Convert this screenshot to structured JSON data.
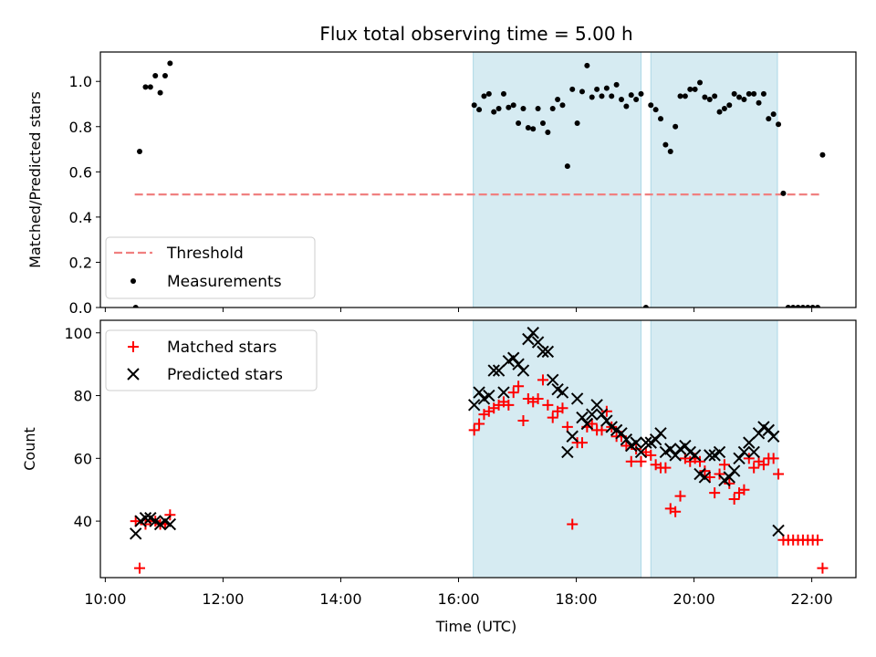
{
  "figure": {
    "title": "Flux total observing time = 5.00 h",
    "xlabel": "Time (UTC)",
    "xticks": [
      "10:00",
      "12:00",
      "14:00",
      "16:00",
      "18:00",
      "20:00",
      "22:00"
    ]
  },
  "colors": {
    "shade": "#add8e6",
    "threshold": "#f08080",
    "matched": "#ff0000",
    "predicted": "#000000",
    "measurements": "#000000"
  },
  "chart_data": [
    {
      "type": "scatter",
      "ylabel": "Matched/Predicted stars",
      "xlim": [
        "09:55",
        "22:45"
      ],
      "ylim": [
        0,
        1.13
      ],
      "yticks": [
        "0.0",
        "0.2",
        "0.4",
        "0.6",
        "0.8",
        "1.0"
      ],
      "legend_position": "lower-left",
      "shaded_intervals": [
        [
          "16:15",
          "19:06"
        ],
        [
          "19:16",
          "21:25"
        ]
      ],
      "threshold": {
        "name": "Threshold",
        "y": 0.5,
        "x": [
          "10:30",
          "22:10"
        ]
      },
      "series": [
        {
          "name": "Measurements",
          "points": [
            [
              "10:31",
              0.0
            ],
            [
              "10:35",
              0.69
            ],
            [
              "10:41",
              0.975
            ],
            [
              "10:46",
              0.975
            ],
            [
              "10:51",
              1.025
            ],
            [
              "10:56",
              0.95
            ],
            [
              "11:01",
              1.025
            ],
            [
              "11:06",
              1.08
            ],
            [
              "16:16",
              0.895
            ],
            [
              "16:21",
              0.875
            ],
            [
              "16:26",
              0.935
            ],
            [
              "16:31",
              0.945
            ],
            [
              "16:36",
              0.865
            ],
            [
              "16:41",
              0.88
            ],
            [
              "16:46",
              0.945
            ],
            [
              "16:51",
              0.885
            ],
            [
              "16:56",
              0.895
            ],
            [
              "17:01",
              0.815
            ],
            [
              "17:06",
              0.88
            ],
            [
              "17:11",
              0.795
            ],
            [
              "17:16",
              0.79
            ],
            [
              "17:21",
              0.88
            ],
            [
              "17:26",
              0.815
            ],
            [
              "17:31",
              0.775
            ],
            [
              "17:36",
              0.88
            ],
            [
              "17:41",
              0.92
            ],
            [
              "17:46",
              0.895
            ],
            [
              "17:51",
              0.625
            ],
            [
              "17:56",
              0.965
            ],
            [
              "18:01",
              0.815
            ],
            [
              "18:06",
              0.955
            ],
            [
              "18:11",
              1.07
            ],
            [
              "18:16",
              0.93
            ],
            [
              "18:21",
              0.965
            ],
            [
              "18:26",
              0.935
            ],
            [
              "18:31",
              0.97
            ],
            [
              "18:36",
              0.935
            ],
            [
              "18:41",
              0.985
            ],
            [
              "18:46",
              0.92
            ],
            [
              "18:51",
              0.89
            ],
            [
              "18:56",
              0.94
            ],
            [
              "19:01",
              0.92
            ],
            [
              "19:06",
              0.945
            ],
            [
              "19:11",
              0.0
            ],
            [
              "19:16",
              0.895
            ],
            [
              "19:21",
              0.875
            ],
            [
              "19:26",
              0.835
            ],
            [
              "19:31",
              0.72
            ],
            [
              "19:36",
              0.69
            ],
            [
              "19:41",
              0.8
            ],
            [
              "19:46",
              0.935
            ],
            [
              "19:51",
              0.935
            ],
            [
              "19:56",
              0.965
            ],
            [
              "20:01",
              0.965
            ],
            [
              "20:06",
              0.995
            ],
            [
              "20:11",
              0.93
            ],
            [
              "20:16",
              0.92
            ],
            [
              "20:21",
              0.935
            ],
            [
              "20:26",
              0.865
            ],
            [
              "20:31",
              0.88
            ],
            [
              "20:36",
              0.895
            ],
            [
              "20:41",
              0.945
            ],
            [
              "20:46",
              0.93
            ],
            [
              "20:51",
              0.92
            ],
            [
              "20:56",
              0.945
            ],
            [
              "21:01",
              0.945
            ],
            [
              "21:06",
              0.905
            ],
            [
              "21:11",
              0.945
            ],
            [
              "21:16",
              0.835
            ],
            [
              "21:21",
              0.855
            ],
            [
              "21:26",
              0.81
            ],
            [
              "21:31",
              0.505
            ],
            [
              "21:36",
              0.0
            ],
            [
              "21:41",
              0.0
            ],
            [
              "21:46",
              0.0
            ],
            [
              "21:51",
              0.0
            ],
            [
              "21:56",
              0.0
            ],
            [
              "22:01",
              0.0
            ],
            [
              "22:06",
              0.0
            ],
            [
              "22:11",
              0.675
            ]
          ]
        }
      ]
    },
    {
      "type": "scatter",
      "ylabel": "Count",
      "xlim": [
        "09:55",
        "22:45"
      ],
      "ylim": [
        22,
        104
      ],
      "yticks": [
        "40",
        "60",
        "80",
        "100"
      ],
      "legend_position": "upper-left",
      "shaded_intervals": [
        [
          "16:15",
          "19:06"
        ],
        [
          "19:16",
          "21:25"
        ]
      ],
      "series": [
        {
          "name": "Matched stars",
          "marker": "plus",
          "points": [
            [
              "10:31",
              40
            ],
            [
              "10:35",
              25
            ],
            [
              "10:41",
              39
            ],
            [
              "10:46",
              40
            ],
            [
              "10:51",
              40
            ],
            [
              "10:56",
              39
            ],
            [
              "11:01",
              39
            ],
            [
              "11:06",
              42
            ],
            [
              "16:16",
              69
            ],
            [
              "16:21",
              71
            ],
            [
              "16:26",
              74
            ],
            [
              "16:31",
              75
            ],
            [
              "16:36",
              76
            ],
            [
              "16:41",
              77
            ],
            [
              "16:46",
              78
            ],
            [
              "16:51",
              77
            ],
            [
              "16:56",
              81
            ],
            [
              "17:01",
              83
            ],
            [
              "17:06",
              72
            ],
            [
              "17:11",
              79
            ],
            [
              "17:16",
              78
            ],
            [
              "17:21",
              79
            ],
            [
              "17:26",
              85
            ],
            [
              "17:31",
              77
            ],
            [
              "17:36",
              73
            ],
            [
              "17:41",
              75
            ],
            [
              "17:46",
              76
            ],
            [
              "17:51",
              70
            ],
            [
              "17:56",
              39
            ],
            [
              "18:01",
              65
            ],
            [
              "18:06",
              65
            ],
            [
              "18:11",
              70
            ],
            [
              "18:16",
              71
            ],
            [
              "18:21",
              69
            ],
            [
              "18:26",
              69
            ],
            [
              "18:31",
              75
            ],
            [
              "18:36",
              70
            ],
            [
              "18:41",
              67
            ],
            [
              "18:46",
              67
            ],
            [
              "18:51",
              64
            ],
            [
              "18:56",
              59
            ],
            [
              "19:01",
              63
            ],
            [
              "19:06",
              59
            ],
            [
              "19:11",
              62
            ],
            [
              "19:16",
              61
            ],
            [
              "19:21",
              58
            ],
            [
              "19:26",
              57
            ],
            [
              "19:31",
              57
            ],
            [
              "19:36",
              44
            ],
            [
              "19:41",
              43
            ],
            [
              "19:46",
              48
            ],
            [
              "19:51",
              60
            ],
            [
              "19:56",
              59
            ],
            [
              "20:01",
              60
            ],
            [
              "20:06",
              59
            ],
            [
              "20:11",
              56
            ],
            [
              "20:16",
              54
            ],
            [
              "20:21",
              49
            ],
            [
              "20:26",
              55
            ],
            [
              "20:31",
              58
            ],
            [
              "20:36",
              52
            ],
            [
              "20:41",
              47
            ],
            [
              "20:46",
              49
            ],
            [
              "20:51",
              50
            ],
            [
              "20:56",
              60
            ],
            [
              "21:01",
              57
            ],
            [
              "21:06",
              59
            ],
            [
              "21:11",
              58
            ],
            [
              "21:16",
              60
            ],
            [
              "21:21",
              60
            ],
            [
              "21:26",
              55
            ],
            [
              "21:31",
              34
            ],
            [
              "21:36",
              34
            ],
            [
              "21:41",
              34
            ],
            [
              "21:46",
              34
            ],
            [
              "21:51",
              34
            ],
            [
              "21:56",
              34
            ],
            [
              "22:01",
              34
            ],
            [
              "22:06",
              34
            ],
            [
              "22:11",
              25
            ]
          ]
        },
        {
          "name": "Predicted stars",
          "marker": "x",
          "points": [
            [
              "10:31",
              36
            ],
            [
              "10:36",
              40
            ],
            [
              "10:41",
              41
            ],
            [
              "10:46",
              41
            ],
            [
              "10:51",
              40
            ],
            [
              "10:56",
              39
            ],
            [
              "11:01",
              40
            ],
            [
              "11:06",
              39
            ],
            [
              "16:16",
              77
            ],
            [
              "16:21",
              81
            ],
            [
              "16:26",
              79
            ],
            [
              "16:31",
              80
            ],
            [
              "16:36",
              88
            ],
            [
              "16:41",
              88
            ],
            [
              "16:46",
              81
            ],
            [
              "16:51",
              91
            ],
            [
              "16:56",
              92
            ],
            [
              "17:01",
              90
            ],
            [
              "17:06",
              88
            ],
            [
              "17:11",
              98
            ],
            [
              "17:16",
              100
            ],
            [
              "17:21",
              97
            ],
            [
              "17:26",
              94
            ],
            [
              "17:31",
              94
            ],
            [
              "17:36",
              85
            ],
            [
              "17:41",
              82
            ],
            [
              "17:46",
              81
            ],
            [
              "17:51",
              62
            ],
            [
              "17:56",
              67
            ],
            [
              "18:01",
              79
            ],
            [
              "18:06",
              73
            ],
            [
              "18:11",
              71
            ],
            [
              "18:16",
              74
            ],
            [
              "18:21",
              77
            ],
            [
              "18:26",
              74
            ],
            [
              "18:31",
              72
            ],
            [
              "18:36",
              70
            ],
            [
              "18:41",
              69
            ],
            [
              "18:46",
              68
            ],
            [
              "18:51",
              66
            ],
            [
              "18:56",
              64
            ],
            [
              "19:01",
              65
            ],
            [
              "19:06",
              62
            ],
            [
              "19:11",
              65
            ],
            [
              "19:16",
              65
            ],
            [
              "19:21",
              66
            ],
            [
              "19:26",
              68
            ],
            [
              "19:31",
              62
            ],
            [
              "19:36",
              63
            ],
            [
              "19:41",
              61
            ],
            [
              "19:46",
              63
            ],
            [
              "19:51",
              64
            ],
            [
              "19:56",
              62
            ],
            [
              "20:01",
              61
            ],
            [
              "20:06",
              55
            ],
            [
              "20:11",
              54
            ],
            [
              "20:16",
              61
            ],
            [
              "20:21",
              61
            ],
            [
              "20:26",
              62
            ],
            [
              "20:31",
              53
            ],
            [
              "20:36",
              54
            ],
            [
              "20:41",
              56
            ],
            [
              "20:46",
              60
            ],
            [
              "20:51",
              62
            ],
            [
              "20:56",
              65
            ],
            [
              "21:01",
              62
            ],
            [
              "21:06",
              68
            ],
            [
              "21:11",
              70
            ],
            [
              "21:16",
              69
            ],
            [
              "21:21",
              67
            ],
            [
              "21:26",
              37
            ]
          ]
        }
      ]
    }
  ]
}
